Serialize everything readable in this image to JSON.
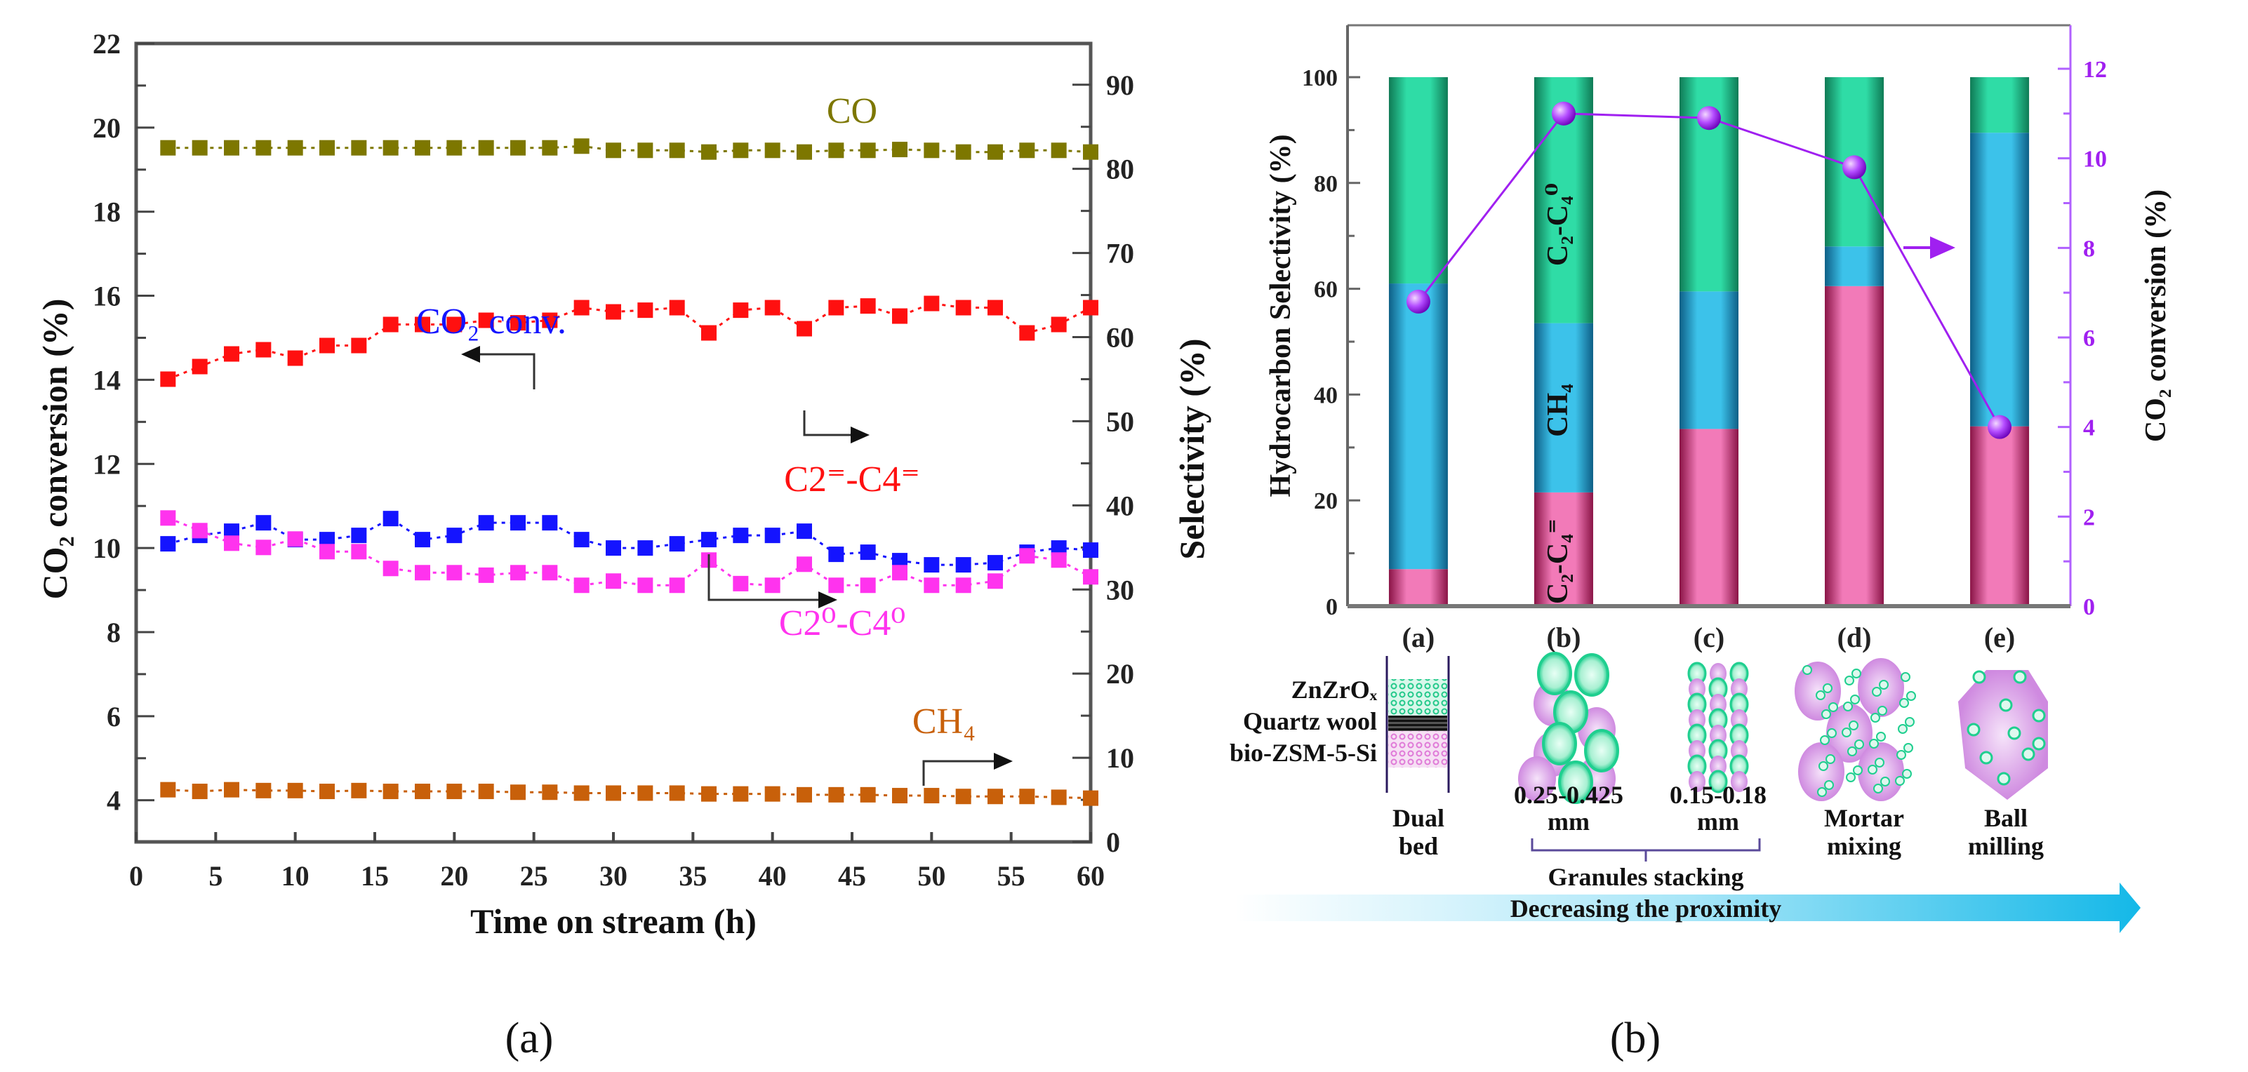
{
  "captions": {
    "a": "(a)",
    "b": "(b)"
  },
  "colors": {
    "co": "#7d7700",
    "olefin": "#ff1010",
    "co2": "#1414ff",
    "paraffin": "#ff33ee",
    "ch4": "#c8600a",
    "bar_olefin": "#f27ab8",
    "bar_ch4": "#3cc2ea",
    "bar_paraffin": "#2fdca6",
    "conversion": "#a020f0"
  },
  "chart_data": [
    {
      "type": "line",
      "title": "",
      "xlabel": "Time on stream (h)",
      "ylabel": "CO₂ conversion (%)",
      "y2label": "Selectivity (%)",
      "xlim": [
        0,
        60
      ],
      "ylim": [
        3,
        22
      ],
      "y2lim": [
        0,
        95
      ],
      "xticks": [
        0,
        5,
        10,
        15,
        20,
        25,
        30,
        35,
        40,
        45,
        50,
        55,
        60
      ],
      "yticks": [
        4,
        6,
        8,
        10,
        12,
        14,
        16,
        18,
        20,
        22
      ],
      "y2ticks": [
        0,
        10,
        20,
        30,
        40,
        50,
        60,
        70,
        80,
        90
      ],
      "x": [
        2,
        4,
        6,
        8,
        10,
        12,
        14,
        16,
        18,
        20,
        22,
        24,
        26,
        28,
        30,
        32,
        34,
        36,
        38,
        40,
        42,
        44,
        46,
        48,
        50,
        52,
        54,
        56,
        58,
        60
      ],
      "series": [
        {
          "name": "CO",
          "label": "CO",
          "axis": "right",
          "color_key": "co",
          "values": [
            82.5,
            82.5,
            82.5,
            82.5,
            82.5,
            82.5,
            82.5,
            82.5,
            82.5,
            82.5,
            82.5,
            82.5,
            82.5,
            82.7,
            82.2,
            82.2,
            82.2,
            82.0,
            82.2,
            82.2,
            82.0,
            82.2,
            82.2,
            82.3,
            82.2,
            82.0,
            82.0,
            82.2,
            82.2,
            82.0
          ]
        },
        {
          "name": "C2=-C4=",
          "label": "C2⁼-C4⁼",
          "axis": "right",
          "color_key": "olefin",
          "values": [
            55.0,
            56.5,
            58.0,
            58.5,
            57.5,
            59.0,
            59.0,
            61.5,
            61.5,
            61.5,
            62.0,
            61.7,
            62.0,
            63.5,
            63.0,
            63.2,
            63.5,
            60.5,
            63.2,
            63.5,
            61.0,
            63.5,
            63.7,
            62.5,
            64.0,
            63.5,
            63.5,
            60.5,
            61.5,
            63.5
          ]
        },
        {
          "name": "CO2 conv.",
          "label": "CO₂ conv.",
          "axis": "left",
          "color_key": "co2",
          "values": [
            10.1,
            10.3,
            10.4,
            10.6,
            10.2,
            10.2,
            10.3,
            10.7,
            10.2,
            10.3,
            10.6,
            10.6,
            10.6,
            10.2,
            10.0,
            10.0,
            10.1,
            10.2,
            10.3,
            10.3,
            10.4,
            9.85,
            9.9,
            9.7,
            9.6,
            9.6,
            9.65,
            9.9,
            10.0,
            9.95
          ]
        },
        {
          "name": "C2°-C4°",
          "label": "C2⁰-C4⁰",
          "axis": "right",
          "color_key": "paraffin",
          "values": [
            38.5,
            37.0,
            35.5,
            35.0,
            36.0,
            34.5,
            34.5,
            32.5,
            32.0,
            32.0,
            31.7,
            32.0,
            32.0,
            30.5,
            31.0,
            30.5,
            30.5,
            33.5,
            30.7,
            30.5,
            33.0,
            30.5,
            30.5,
            32.0,
            30.5,
            30.5,
            31.0,
            34.0,
            33.5,
            31.5
          ]
        },
        {
          "name": "CH4",
          "label": "CH₄",
          "axis": "right",
          "color_key": "ch4",
          "values": [
            6.2,
            6.0,
            6.2,
            6.1,
            6.1,
            6.0,
            6.1,
            6.0,
            6.0,
            6.0,
            6.0,
            5.9,
            5.9,
            5.8,
            5.8,
            5.8,
            5.8,
            5.7,
            5.7,
            5.7,
            5.6,
            5.6,
            5.6,
            5.5,
            5.5,
            5.4,
            5.4,
            5.4,
            5.3,
            5.2
          ]
        }
      ]
    },
    {
      "type": "bar",
      "stacked": true,
      "ylabel": "Hydrocarbon Selectivity (%)",
      "y2label": "CO₂ conversion (%)",
      "ylim": [
        0,
        110
      ],
      "y2lim": [
        0,
        13
      ],
      "yticks": [
        0,
        20,
        40,
        60,
        80,
        100
      ],
      "y2ticks": [
        0,
        2,
        4,
        6,
        8,
        10,
        12
      ],
      "categories": [
        "(a)",
        "(b)",
        "(c)",
        "(d)",
        "(e)"
      ],
      "series": [
        {
          "name": "C2-C4=",
          "label": "C₂-C₄⁼",
          "color_key": "bar_olefin",
          "values": [
            7,
            21.5,
            33.5,
            60.5,
            34
          ]
        },
        {
          "name": "CH4",
          "label": "CH₄",
          "color_key": "bar_ch4",
          "values": [
            54,
            32,
            26,
            7.5,
            55.5
          ]
        },
        {
          "name": "C2-C4 0",
          "label": "C₂-C₄⁰",
          "color_key": "bar_paraffin",
          "values": [
            39,
            46.5,
            40.5,
            32,
            10.5
          ]
        }
      ],
      "line": {
        "name": "CO2 conversion",
        "axis": "right",
        "color_key": "conversion",
        "values": [
          6.8,
          11.0,
          10.9,
          9.8,
          4.0
        ]
      }
    }
  ],
  "scheme": {
    "layer_labels": [
      "ZnZrOₓ",
      "Quartz wool",
      "bio-ZSM-5-Si"
    ],
    "dual_bed": [
      "Dual",
      "bed"
    ],
    "size_b": [
      "0.25-0.425",
      "mm"
    ],
    "size_c": [
      "0.15-0.18",
      "mm"
    ],
    "mortar": [
      "Mortar",
      "mixing"
    ],
    "ball": [
      "Ball",
      "milling"
    ],
    "granules": "Granules stacking",
    "arrow_text": "Decreasing the proximity"
  }
}
